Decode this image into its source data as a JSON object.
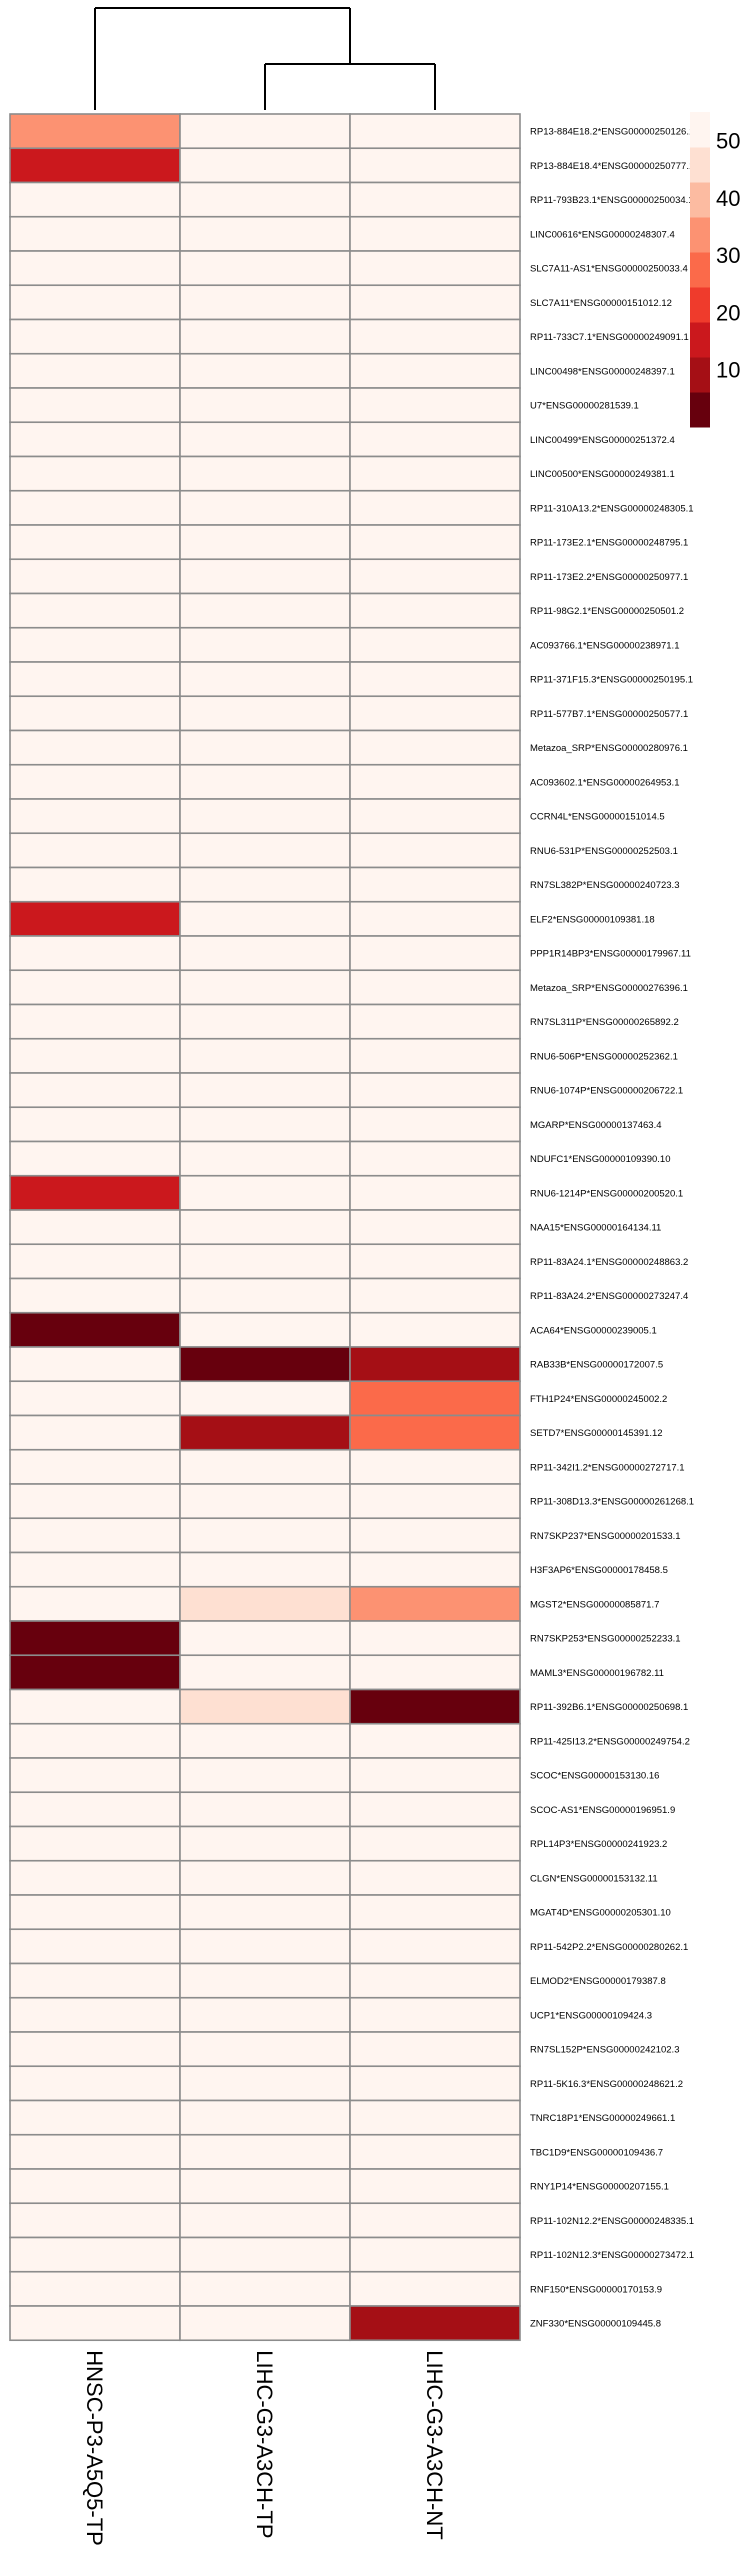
{
  "chart_data": {
    "type": "heatmap",
    "title": "",
    "xlabel": "",
    "ylabel": "",
    "columns": [
      "HNSC-P3-A5Q5-TP",
      "LIHC-G3-A3CH-TP",
      "LIHC-G3-A3CH-NT"
    ],
    "dendrogram": "columns: LIHC-G3-A3CH-TP and LIHC-G3-A3CH-NT merge first, then join HNSC-P3-A5Q5-TP",
    "legend": {
      "position": "top-right",
      "ticks": [
        50,
        40,
        30,
        20,
        10
      ],
      "range": [
        0,
        55
      ],
      "colors": [
        "#67000d",
        "#a50f15",
        "#cb181d",
        "#ef3b2c",
        "#fb6a4a",
        "#fc9272",
        "#fcbba1",
        "#fee0d2",
        "#fff5f0"
      ]
    },
    "rows": [
      {
        "label": "RP13-884E18.2*ENSG00000250126.1",
        "values": [
          33,
          53,
          53
        ]
      },
      {
        "label": "RP13-884E18.4*ENSG00000250777.1",
        "values": [
          18,
          53,
          53
        ]
      },
      {
        "label": "RP11-793B23.1*ENSG00000250034.1",
        "values": [
          53,
          53,
          53
        ]
      },
      {
        "label": "LINC00616*ENSG00000248307.4",
        "values": [
          53,
          53,
          53
        ]
      },
      {
        "label": "SLC7A11-AS1*ENSG00000250033.4",
        "values": [
          53,
          53,
          53
        ]
      },
      {
        "label": "SLC7A11*ENSG00000151012.12",
        "values": [
          53,
          53,
          53
        ]
      },
      {
        "label": "RP11-733C7.1*ENSG00000249091.1",
        "values": [
          53,
          53,
          53
        ]
      },
      {
        "label": "LINC00498*ENSG00000248397.1",
        "values": [
          53,
          53,
          53
        ]
      },
      {
        "label": "U7*ENSG00000281539.1",
        "values": [
          53,
          53,
          53
        ]
      },
      {
        "label": "LINC00499*ENSG00000251372.4",
        "values": [
          53,
          53,
          53
        ]
      },
      {
        "label": "LINC00500*ENSG00000249381.1",
        "values": [
          53,
          53,
          53
        ]
      },
      {
        "label": "RP11-310A13.2*ENSG00000248305.1",
        "values": [
          53,
          53,
          53
        ]
      },
      {
        "label": "RP11-173E2.1*ENSG00000248795.1",
        "values": [
          53,
          53,
          53
        ]
      },
      {
        "label": "RP11-173E2.2*ENSG00000250977.1",
        "values": [
          53,
          53,
          53
        ]
      },
      {
        "label": "RP11-98G2.1*ENSG00000250501.2",
        "values": [
          53,
          53,
          53
        ]
      },
      {
        "label": "AC093766.1*ENSG00000238971.1",
        "values": [
          53,
          53,
          53
        ]
      },
      {
        "label": "RP11-371F15.3*ENSG00000250195.1",
        "values": [
          53,
          53,
          53
        ]
      },
      {
        "label": "RP11-577B7.1*ENSG00000250577.1",
        "values": [
          53,
          53,
          53
        ]
      },
      {
        "label": "Metazoa_SRP*ENSG00000280976.1",
        "values": [
          53,
          53,
          53
        ]
      },
      {
        "label": "AC093602.1*ENSG00000264953.1",
        "values": [
          53,
          53,
          53
        ]
      },
      {
        "label": "CCRN4L*ENSG00000151014.5",
        "values": [
          53,
          53,
          53
        ]
      },
      {
        "label": "RNU6-531P*ENSG00000252503.1",
        "values": [
          53,
          53,
          53
        ]
      },
      {
        "label": "RN7SL382P*ENSG00000240723.3",
        "values": [
          53,
          53,
          53
        ]
      },
      {
        "label": "ELF2*ENSG00000109381.18",
        "values": [
          18,
          53,
          53
        ]
      },
      {
        "label": "PPP1R14BP3*ENSG00000179967.11",
        "values": [
          53,
          53,
          53
        ]
      },
      {
        "label": "Metazoa_SRP*ENSG00000276396.1",
        "values": [
          53,
          53,
          53
        ]
      },
      {
        "label": "RN7SL311P*ENSG00000265892.2",
        "values": [
          53,
          53,
          53
        ]
      },
      {
        "label": "RNU6-506P*ENSG00000252362.1",
        "values": [
          53,
          53,
          53
        ]
      },
      {
        "label": "RNU6-1074P*ENSG00000206722.1",
        "values": [
          53,
          53,
          53
        ]
      },
      {
        "label": "MGARP*ENSG00000137463.4",
        "values": [
          53,
          53,
          53
        ]
      },
      {
        "label": "NDUFC1*ENSG00000109390.10",
        "values": [
          53,
          53,
          53
        ]
      },
      {
        "label": "RNU6-1214P*ENSG00000200520.1",
        "values": [
          18,
          53,
          53
        ]
      },
      {
        "label": "NAA15*ENSG00000164134.11",
        "values": [
          53,
          53,
          53
        ]
      },
      {
        "label": "RP11-83A24.1*ENSG00000248863.2",
        "values": [
          53,
          53,
          53
        ]
      },
      {
        "label": "RP11-83A24.2*ENSG00000273247.4",
        "values": [
          53,
          53,
          53
        ]
      },
      {
        "label": "ACA64*ENSG00000239005.1",
        "values": [
          2,
          53,
          53
        ]
      },
      {
        "label": "RAB33B*ENSG00000172007.5",
        "values": [
          53,
          2,
          8
        ]
      },
      {
        "label": "FTH1P24*ENSG00000245002.2",
        "values": [
          53,
          50,
          25
        ]
      },
      {
        "label": "SETD7*ENSG00000145391.12",
        "values": [
          53,
          8,
          25
        ]
      },
      {
        "label": "RP11-342I1.2*ENSG00000272717.1",
        "values": [
          53,
          53,
          53
        ]
      },
      {
        "label": "RP11-308D13.3*ENSG00000261268.1",
        "values": [
          53,
          53,
          53
        ]
      },
      {
        "label": "RN7SKP237*ENSG00000201533.1",
        "values": [
          53,
          53,
          53
        ]
      },
      {
        "label": "H3F3AP6*ENSG00000178458.5",
        "values": [
          53,
          53,
          53
        ]
      },
      {
        "label": "MGST2*ENSG00000085871.7",
        "values": [
          53,
          43,
          32
        ]
      },
      {
        "label": "RN7SKP253*ENSG00000252233.1",
        "values": [
          2,
          53,
          53
        ]
      },
      {
        "label": "MAML3*ENSG00000196782.11",
        "values": [
          2,
          53,
          53
        ]
      },
      {
        "label": "RP11-392B6.1*ENSG00000250698.1",
        "values": [
          53,
          43,
          2
        ]
      },
      {
        "label": "RP11-425I13.2*ENSG00000249754.2",
        "values": [
          53,
          53,
          53
        ]
      },
      {
        "label": "SCOC*ENSG00000153130.16",
        "values": [
          53,
          53,
          53
        ]
      },
      {
        "label": "SCOC-AS1*ENSG00000196951.9",
        "values": [
          53,
          53,
          53
        ]
      },
      {
        "label": "RPL14P3*ENSG00000241923.2",
        "values": [
          53,
          53,
          53
        ]
      },
      {
        "label": "CLGN*ENSG00000153132.11",
        "values": [
          53,
          53,
          53
        ]
      },
      {
        "label": "MGAT4D*ENSG00000205301.10",
        "values": [
          53,
          53,
          53
        ]
      },
      {
        "label": "RP11-542P2.2*ENSG00000280262.1",
        "values": [
          53,
          53,
          53
        ]
      },
      {
        "label": "ELMOD2*ENSG00000179387.8",
        "values": [
          53,
          53,
          53
        ]
      },
      {
        "label": "UCP1*ENSG00000109424.3",
        "values": [
          53,
          53,
          53
        ]
      },
      {
        "label": "RN7SL152P*ENSG00000242102.3",
        "values": [
          53,
          53,
          53
        ]
      },
      {
        "label": "RP11-5K16.3*ENSG00000248621.2",
        "values": [
          53,
          53,
          53
        ]
      },
      {
        "label": "TNRC18P1*ENSG00000249661.1",
        "values": [
          53,
          53,
          53
        ]
      },
      {
        "label": "TBC1D9*ENSG00000109436.7",
        "values": [
          53,
          53,
          53
        ]
      },
      {
        "label": "RNY1P14*ENSG00000207155.1",
        "values": [
          53,
          53,
          53
        ]
      },
      {
        "label": "RP11-102N12.2*ENSG00000248335.1",
        "values": [
          53,
          53,
          53
        ]
      },
      {
        "label": "RP11-102N12.3*ENSG00000273472.1",
        "values": [
          53,
          53,
          53
        ]
      },
      {
        "label": "RNF150*ENSG00000170153.9",
        "values": [
          53,
          53,
          53
        ]
      },
      {
        "label": "ZNF330*ENSG00000109445.8",
        "values": [
          53,
          53,
          12
        ]
      }
    ]
  }
}
